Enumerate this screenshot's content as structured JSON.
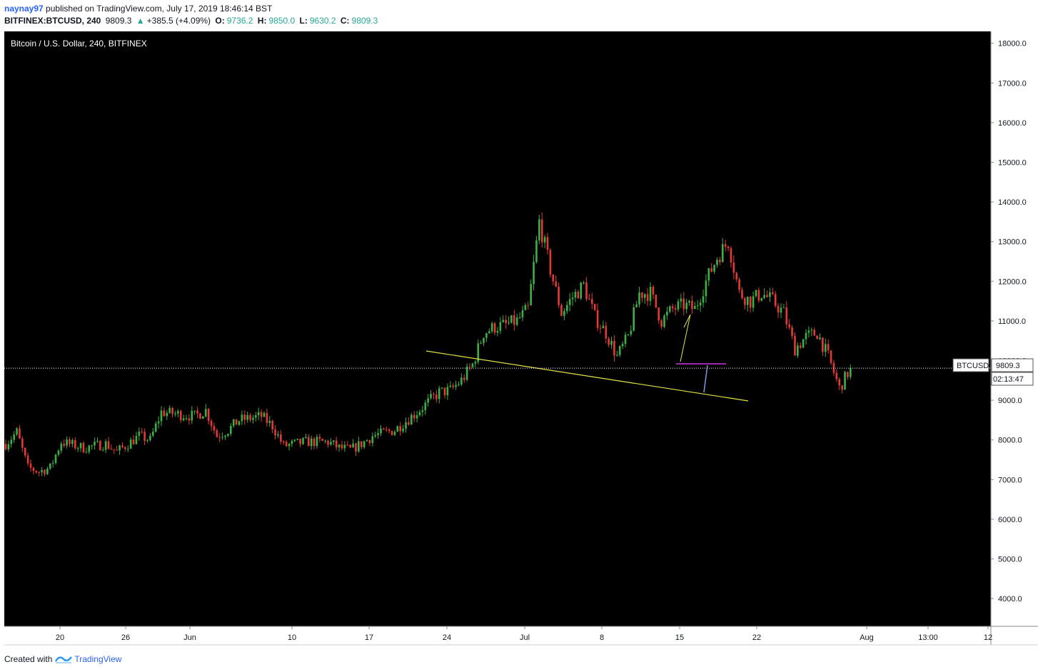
{
  "header": {
    "user": "naynay97",
    "published_text": "published on TradingView.com, July 17, 2019 18:46:14 BST",
    "symbol": "BITFINEX:BTCUSD, 240",
    "last": "9809.3",
    "change_arrow": "▲",
    "change": "+385.5 (+4.09%)",
    "open_label": "O:",
    "open": "9736.2",
    "high_label": "H:",
    "high": "9850.0",
    "low_label": "L:",
    "low": "9630.2",
    "close_label": "C:",
    "close": "9809.3"
  },
  "chart_title": "Bitcoin / U.S. Dollar, 240, BITFINEX",
  "price_label": {
    "symbol": "BTCUSD",
    "value": "9809.3",
    "countdown": "02:13:47"
  },
  "footer": {
    "created_with": "Created with",
    "brand": "TradingView",
    "logo_icon": "tradingview-logo-icon"
  },
  "colors": {
    "up": "#3cb043",
    "down": "#e53935",
    "background": "#000000",
    "trendline": "#e6e24a",
    "highlight": "#9c27b0"
  },
  "chart_data": {
    "type": "candlestick",
    "ylim": [
      3300,
      18300
    ],
    "y_ticks": [
      "4000.0",
      "5000.0",
      "6000.0",
      "7000.0",
      "8000.0",
      "9000.0",
      "10000.0",
      "11000.0",
      "12000.0",
      "13000.0",
      "14000.0",
      "15000.0",
      "16000.0",
      "17000.0",
      "18000.0"
    ],
    "x_ticks": [
      "20",
      "26",
      "Jun",
      "10",
      "17",
      "24",
      "Jul",
      "8",
      "15",
      "22",
      "Aug",
      "13:00",
      "12"
    ],
    "price_anchors": [
      {
        "date": "2019-05-15",
        "close": 7900
      },
      {
        "date": "2019-05-16",
        "close": 8200
      },
      {
        "date": "2019-05-17",
        "close": 7300
      },
      {
        "date": "2019-05-18",
        "close": 7200
      },
      {
        "date": "2019-05-19",
        "close": 7300
      },
      {
        "date": "2019-05-20",
        "close": 7950
      },
      {
        "date": "2019-05-22",
        "close": 7800
      },
      {
        "date": "2019-05-24",
        "close": 7900
      },
      {
        "date": "2019-05-25",
        "close": 7700
      },
      {
        "date": "2019-05-27",
        "close": 8100
      },
      {
        "date": "2019-05-28",
        "close": 8000
      },
      {
        "date": "2019-05-29",
        "close": 8700
      },
      {
        "date": "2019-06-01",
        "close": 8600
      },
      {
        "date": "2019-06-02",
        "close": 8750
      },
      {
        "date": "2019-06-03",
        "close": 8100
      },
      {
        "date": "2019-06-04",
        "close": 8250
      },
      {
        "date": "2019-06-05",
        "close": 8500
      },
      {
        "date": "2019-06-07",
        "close": 8600
      },
      {
        "date": "2019-06-08",
        "close": 8350
      },
      {
        "date": "2019-06-09",
        "close": 7850
      },
      {
        "date": "2019-06-11",
        "close": 7950
      },
      {
        "date": "2019-06-13",
        "close": 7950
      },
      {
        "date": "2019-06-14",
        "close": 7800
      },
      {
        "date": "2019-06-15",
        "close": 7750
      },
      {
        "date": "2019-06-16",
        "close": 7900
      },
      {
        "date": "2019-06-17",
        "close": 8100
      },
      {
        "date": "2019-06-19",
        "close": 8250
      },
      {
        "date": "2019-06-21",
        "close": 8700
      },
      {
        "date": "2019-06-23",
        "close": 9200
      },
      {
        "date": "2019-06-24",
        "close": 9250
      },
      {
        "date": "2019-06-25",
        "close": 9500
      },
      {
        "date": "2019-06-26",
        "close": 9900
      },
      {
        "date": "2019-06-27",
        "close": 10700
      },
      {
        "date": "2019-06-28",
        "close": 10850
      },
      {
        "date": "2019-06-29",
        "close": 10900
      },
      {
        "date": "2019-06-30",
        "close": 11000
      },
      {
        "date": "2019-07-01",
        "close": 11300
      },
      {
        "date": "2019-07-02",
        "close": 13500
      },
      {
        "date": "2019-07-03",
        "close": 12300
      },
      {
        "date": "2019-07-04",
        "close": 11200
      },
      {
        "date": "2019-07-05",
        "close": 11600
      },
      {
        "date": "2019-07-06",
        "close": 11900
      },
      {
        "date": "2019-07-07",
        "close": 11100
      },
      {
        "date": "2019-07-08",
        "close": 10700
      },
      {
        "date": "2019-07-09",
        "close": 10100
      },
      {
        "date": "2019-07-10",
        "close": 10600
      },
      {
        "date": "2019-07-11",
        "close": 11700
      },
      {
        "date": "2019-07-12",
        "close": 11700
      },
      {
        "date": "2019-07-13",
        "close": 11000
      },
      {
        "date": "2019-07-14",
        "close": 11300
      },
      {
        "date": "2019-07-15",
        "close": 11400
      },
      {
        "date": "2019-07-16",
        "close": 11300
      },
      {
        "date": "2019-07-17",
        "close": 12000
      },
      {
        "date": "2019-07-18",
        "close": 12600
      },
      {
        "date": "2019-07-19",
        "close": 13000
      },
      {
        "date": "2019-07-20",
        "close": 11700
      },
      {
        "date": "2019-07-21",
        "close": 11500
      },
      {
        "date": "2019-07-22",
        "close": 11700
      },
      {
        "date": "2019-07-23",
        "close": 11500
      },
      {
        "date": "2019-07-24",
        "close": 11200
      },
      {
        "date": "2019-07-25",
        "close": 10300
      },
      {
        "date": "2019-07-26",
        "close": 10600
      },
      {
        "date": "2019-07-27",
        "close": 10700
      },
      {
        "date": "2019-07-28",
        "close": 10100
      },
      {
        "date": "2019-07-29",
        "close": 9300
      },
      {
        "date": "2019-07-30",
        "close": 9809.3
      }
    ],
    "current_price": 9809.3
  }
}
